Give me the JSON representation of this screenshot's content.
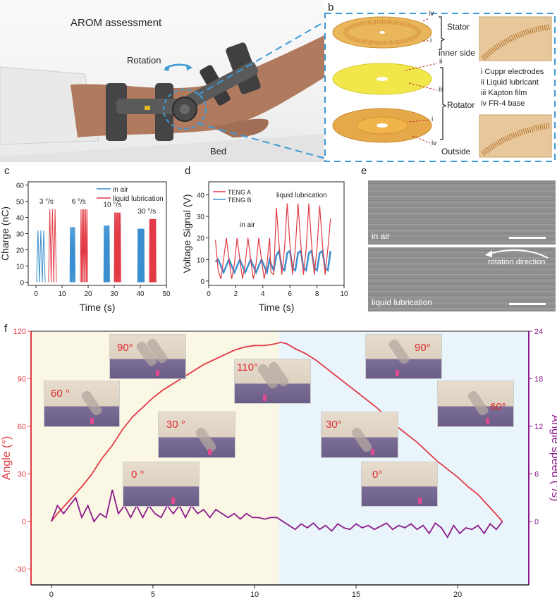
{
  "panel_labels": {
    "a": "a",
    "b": "b",
    "c": "c",
    "d": "d",
    "e": "e",
    "f": "f"
  },
  "panel_a": {
    "title": "AROM assessment",
    "rotation": "Rotation",
    "bed": "Bed"
  },
  "panel_b": {
    "stator": "Stator",
    "inner_side": "inner side",
    "rotator": "Rotator",
    "outside": "Outside",
    "markers": {
      "iv_top": "iv",
      "i_top": "i",
      "ii": "ii",
      "iii": "iii",
      "i_bot": "i",
      "iv_bot": "iv"
    },
    "legend": [
      "i   Cuppr electrodes",
      "ii  Liquid lubricant",
      "iii Kapton film",
      "iv FR-4 base"
    ]
  },
  "panel_e": {
    "in_air": "in air",
    "liquid_lubrication": "liquid lubrication",
    "rotation_direction": "rotation direction"
  },
  "chart_data": [
    {
      "id": "c",
      "type": "bar",
      "xlabel": "Time (s)",
      "ylabel": "Charge (nC)",
      "xlim": [
        -3,
        50
      ],
      "ylim": [
        -2,
        62
      ],
      "xticks": [
        0,
        10,
        20,
        30,
        40,
        50
      ],
      "yticks": [
        0,
        10,
        20,
        30,
        40,
        50,
        60
      ],
      "legend": [
        "in air",
        "liquid lubrication"
      ],
      "legend_position": "top-right",
      "colors": {
        "in air": "#3a8fd0",
        "liquid lubrication": "#e23a44"
      },
      "annotations": [
        "3 °/s",
        "6 °/s",
        "10 °/s",
        "30 °/s"
      ],
      "groups": [
        {
          "rate": "3 °/s",
          "in_air": {
            "start": 0.2,
            "end": 3.5,
            "peak": 32,
            "count": 3
          },
          "liquid": {
            "start": 4.8,
            "end": 7.8,
            "peak": 45,
            "count": 3
          }
        },
        {
          "rate": "6 °/s",
          "in_air": {
            "start": 13.0,
            "end": 15.0,
            "peak": 34,
            "count": 6
          },
          "liquid": {
            "start": 17.0,
            "end": 19.8,
            "peak": 45,
            "count": 6
          }
        },
        {
          "rate": "10 °/s",
          "in_air": {
            "start": 26.0,
            "end": 28.2,
            "peak": 35,
            "count": 8
          },
          "liquid": {
            "start": 30.0,
            "end": 32.5,
            "peak": 43,
            "count": 8
          }
        },
        {
          "rate": "30 °/s",
          "in_air": {
            "start": 39.0,
            "end": 41.5,
            "peak": 33,
            "count": 14
          },
          "liquid": {
            "start": 43.5,
            "end": 46.0,
            "peak": 39,
            "count": 14
          }
        }
      ]
    },
    {
      "id": "d",
      "type": "line",
      "xlabel": "Time (s)",
      "ylabel": "Voltage Signal (V)",
      "xlim": [
        0,
        10
      ],
      "ylim": [
        -2,
        46
      ],
      "xticks": [
        0,
        2,
        4,
        6,
        8,
        10
      ],
      "yticks": [
        0,
        10,
        20,
        30,
        40
      ],
      "legend_position": "top-left",
      "annotations": [
        "in air",
        "liquid lubrication"
      ],
      "series": [
        {
          "name": "TENG A",
          "color": "#e23a44",
          "x": [
            0.5,
            0.7,
            0.9,
            1.1,
            1.3,
            1.5,
            1.7,
            1.9,
            2.1,
            2.3,
            2.5,
            2.7,
            2.9,
            3.1,
            3.3,
            3.5,
            3.7,
            3.9,
            4.1,
            4.3,
            4.5,
            4.6,
            4.8,
            5.0,
            5.2,
            5.4,
            5.6,
            5.8,
            6.0,
            6.2,
            6.4,
            6.6,
            6.8,
            7.0,
            7.2,
            7.4,
            7.6,
            7.8,
            8.0,
            8.2,
            8.4,
            8.6,
            8.8,
            9.0
          ],
          "y": [
            19,
            5,
            1,
            10,
            20,
            10,
            1,
            8,
            20,
            10,
            1,
            8,
            20,
            10,
            1,
            8,
            20,
            10,
            1,
            8,
            20,
            4,
            3,
            34,
            17,
            3,
            15,
            36,
            17,
            3,
            15,
            36,
            17,
            3,
            15,
            36,
            17,
            3,
            15,
            35,
            17,
            3,
            15,
            29
          ]
        },
        {
          "name": "TENG B",
          "color": "#3a8fd0",
          "x": [
            0.5,
            0.7,
            0.9,
            1.1,
            1.3,
            1.5,
            1.7,
            1.9,
            2.1,
            2.3,
            2.5,
            2.7,
            2.9,
            3.1,
            3.3,
            3.5,
            3.7,
            3.9,
            4.1,
            4.3,
            4.5,
            4.6,
            4.8,
            5.0,
            5.2,
            5.4,
            5.6,
            5.8,
            6.0,
            6.2,
            6.4,
            6.6,
            6.8,
            7.0,
            7.2,
            7.4,
            7.6,
            7.8,
            8.0,
            8.2,
            8.4,
            8.6,
            8.8,
            9.0
          ],
          "y": [
            9,
            10,
            7,
            4,
            7,
            10,
            7,
            4,
            7,
            10,
            7,
            4,
            7,
            10,
            7,
            4,
            7,
            10,
            7,
            4,
            10,
            8,
            5,
            12,
            14,
            6,
            5,
            13,
            14,
            6,
            5,
            13,
            14,
            6,
            5,
            13,
            14,
            6,
            5,
            13,
            14,
            6,
            5,
            14
          ]
        }
      ]
    },
    {
      "id": "f",
      "type": "line",
      "xlabel": "Time (s)",
      "ylabel": "Angle (°)",
      "ylabel_right": "Angle speed (°/s)",
      "xlim": [
        -1,
        23.5
      ],
      "ylim": [
        -40,
        120
      ],
      "ylim_right": [
        -8,
        24
      ],
      "xticks": [
        0,
        5,
        10,
        15,
        20
      ],
      "yticks": [
        -30,
        0,
        30,
        60,
        90,
        120
      ],
      "yticks_right": [
        0,
        6,
        12,
        18,
        24
      ],
      "background_regions": [
        {
          "x0": -1,
          "x1": 11.2,
          "color": "#fbf7e5"
        },
        {
          "x0": 11.2,
          "x1": 23.5,
          "color": "#e9f4fb"
        }
      ],
      "series": [
        {
          "name": "",
          "axis": "left",
          "color": "#e23a44",
          "x": [
            0,
            0.3,
            0.8,
            1.5,
            2,
            2.5,
            3,
            3.5,
            4,
            4.5,
            5,
            5.5,
            6,
            6.5,
            7,
            7.5,
            8,
            8.5,
            9,
            9.5,
            10,
            10.5,
            11,
            11.3,
            11.6,
            12,
            12.5,
            13,
            13.5,
            14,
            14.5,
            15,
            15.5,
            16,
            16.5,
            17,
            17.5,
            18,
            18.5,
            19,
            19.5,
            20,
            20.5,
            21,
            21.5,
            22,
            22.2
          ],
          "y": [
            0,
            5,
            12,
            22,
            30,
            40,
            48,
            58,
            66,
            72,
            78,
            83,
            87,
            91,
            95,
            99,
            102,
            105,
            108,
            110,
            111,
            111,
            112,
            113,
            112,
            109,
            106,
            102,
            97,
            92,
            87,
            82,
            77,
            72,
            66,
            60,
            55,
            50,
            44,
            38,
            33,
            28,
            22,
            17,
            10,
            3,
            0
          ]
        },
        {
          "name": "",
          "axis": "right",
          "color": "#8b1a89",
          "x": [
            0,
            0.3,
            0.6,
            0.9,
            1.2,
            1.5,
            1.8,
            2.1,
            2.4,
            2.7,
            3.0,
            3.3,
            3.6,
            3.9,
            4.2,
            4.5,
            4.8,
            5.1,
            5.4,
            5.7,
            6.0,
            6.3,
            6.6,
            6.9,
            7.2,
            7.5,
            7.8,
            8.1,
            8.4,
            8.7,
            9.0,
            9.3,
            9.6,
            9.9,
            10.2,
            10.5,
            10.8,
            11.1,
            11.4,
            11.7,
            12.0,
            12.3,
            12.6,
            12.9,
            13.2,
            13.5,
            13.8,
            14.1,
            14.4,
            14.7,
            15.0,
            15.3,
            15.6,
            15.9,
            16.2,
            16.5,
            16.8,
            17.1,
            17.4,
            17.7,
            18.0,
            18.3,
            18.6,
            18.9,
            19.2,
            19.5,
            19.8,
            20.1,
            20.4,
            20.7,
            21.0,
            21.3,
            21.6,
            21.9,
            22.2
          ],
          "y": [
            0,
            2,
            1,
            2,
            3,
            0.5,
            2,
            0,
            1,
            0.5,
            4,
            1,
            2,
            0.5,
            2,
            0.5,
            2,
            1,
            0.5,
            2,
            1,
            2,
            0.5,
            2,
            1,
            1.5,
            0.5,
            1.5,
            1,
            0.5,
            1,
            0.3,
            1,
            0.5,
            0.5,
            0.3,
            0.5,
            0.5,
            0,
            -0.5,
            -1,
            -0.3,
            -0.8,
            -0.2,
            -1,
            -0.5,
            -1.2,
            -0.3,
            -0.8,
            -1,
            -0.3,
            -0.8,
            -0.5,
            -1,
            -0.6,
            -0.2,
            -1,
            -0.5,
            -0.8,
            -0.3,
            -1,
            -0.5,
            -1.5,
            -0.2,
            -0.8,
            -2,
            -0.5,
            -1.5,
            -0.8,
            -1,
            -0.5,
            -1.5,
            -0.3,
            -1,
            0
          ]
        }
      ],
      "photo_labels": {
        "p0": "0 °",
        "p30": "30 °",
        "p60": "60 °",
        "p90": "90°",
        "p110": "110°",
        "r90": "90°",
        "r60": "60°",
        "r30": "30°",
        "r0": "0°"
      }
    }
  ]
}
